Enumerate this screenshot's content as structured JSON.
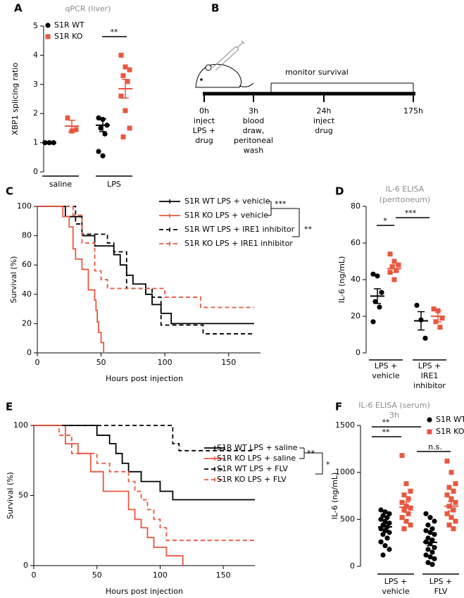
{
  "chart_data": [
    {
      "type": "strip",
      "panel": "A",
      "title": "qPCR (liver)",
      "ylabel": "XBP1 splicing ratio",
      "ylim": [
        0,
        5
      ],
      "yticks": [
        0,
        1,
        2,
        3,
        4,
        5
      ],
      "groups": [
        [
          "saline"
        ],
        [
          "LPS"
        ]
      ],
      "annotations": [
        "**"
      ],
      "series": [
        {
          "name": "S1R WT",
          "color": "#000000",
          "marker": "circle",
          "values": [
            [
              1,
              1,
              1
            ],
            [
              1.85,
              1.8,
              1.6,
              1.5,
              1.3,
              0.7,
              0.55
            ]
          ],
          "mean": [
            1,
            1.6
          ],
          "sem": [
            0,
            0.22
          ]
        },
        {
          "name": "S1R KO",
          "color": "#e9573f",
          "marker": "square",
          "values": [
            [
              1.85,
              1.4,
              1.45
            ],
            [
              4.0,
              3.6,
              3.5,
              3.3,
              3.1,
              2.6,
              2.1,
              1.5,
              1.2
            ]
          ],
          "mean": [
            1.57,
            2.85
          ],
          "sem": [
            0.2,
            0.32
          ]
        }
      ]
    },
    {
      "type": "step",
      "panel": "C",
      "ylabel": "Survival (%)",
      "xlabel": "Hours post injection",
      "xlim": [
        0,
        175
      ],
      "xticks": [
        0,
        50,
        100,
        150
      ],
      "ylim": [
        0,
        100
      ],
      "yticks": [
        0,
        20,
        40,
        60,
        80,
        100
      ],
      "annotations": [
        "***",
        "**"
      ],
      "series": [
        {
          "name": "S1R WT LPS + vehicle",
          "color": "#000000",
          "dash": false,
          "x": [
            0,
            22,
            35,
            45,
            60,
            65,
            70,
            75,
            85,
            90,
            97,
            105,
            170
          ],
          "values": [
            100,
            93,
            80,
            73,
            67,
            60,
            53,
            47,
            40,
            33,
            27,
            20,
            20
          ]
        },
        {
          "name": "S1R KO LPS + vehicle",
          "color": "#e9573f",
          "dash": false,
          "x": [
            0,
            20,
            25,
            28,
            30,
            35,
            40,
            45,
            46,
            47,
            48,
            50,
            52
          ],
          "values": [
            100,
            93,
            86,
            71,
            64,
            57,
            43,
            36,
            29,
            21,
            14,
            7,
            0
          ]
        },
        {
          "name": "S1R WT LPS + IRE1 inhibitor",
          "color": "#000000",
          "dash": true,
          "x": [
            0,
            30,
            35,
            55,
            60,
            70,
            90,
            97,
            130,
            170
          ],
          "values": [
            100,
            88,
            81,
            75,
            69,
            44,
            38,
            19,
            13,
            13
          ]
        },
        {
          "name": "S1R KO LPS + IRE1 inhibitor",
          "color": "#e9573f",
          "dash": true,
          "x": [
            0,
            28,
            35,
            45,
            50,
            55,
            100,
            128,
            170
          ],
          "values": [
            100,
            94,
            75,
            56,
            50,
            44,
            38,
            31,
            31
          ]
        }
      ]
    },
    {
      "type": "strip",
      "panel": "D",
      "title": "IL-6 ELISA",
      "subtitle": "(peritoneum)",
      "ylabel": "IL-6 (ng/mL)",
      "ylim": [
        0,
        80
      ],
      "yticks": [
        0,
        20,
        40,
        60,
        80
      ],
      "groups": [
        [
          "LPS +",
          "vehicle"
        ],
        [
          "LPS +",
          "IRE1",
          "inhibitor"
        ]
      ],
      "annotations": [
        "*",
        "***"
      ],
      "series": [
        {
          "color": "#000000",
          "marker": "circle",
          "values": [
            [
              43,
              42,
              33,
              28,
              25,
              17
            ],
            [
              26,
              18,
              8
            ]
          ],
          "mean": [
            31,
            17.5
          ],
          "sem": [
            4,
            5
          ]
        },
        {
          "color": "#e9573f",
          "marker": "square",
          "values": [
            [
              54,
              50,
              48,
              47,
              45,
              44,
              40
            ],
            [
              24,
              23,
              19,
              17,
              14
            ]
          ],
          "mean": [
            46,
            20
          ],
          "sem": [
            2,
            3
          ]
        }
      ]
    },
    {
      "type": "step",
      "panel": "E",
      "ylabel": "Survival (%)",
      "xlabel": "Hours post injection",
      "xlim": [
        0,
        175
      ],
      "xticks": [
        0,
        50,
        100,
        150
      ],
      "ylim": [
        0,
        100
      ],
      "yticks": [
        0,
        50,
        100
      ],
      "annotations": [
        "**",
        "*"
      ],
      "series": [
        {
          "name": "S1R WT LPS + saline",
          "color": "#000000",
          "dash": false,
          "x": [
            0,
            50,
            60,
            65,
            70,
            75,
            85,
            100,
            110,
            175
          ],
          "values": [
            100,
            93,
            87,
            80,
            73,
            67,
            60,
            53,
            47,
            47
          ]
        },
        {
          "name": "S1R KO LPS + saline",
          "color": "#e9573f",
          "dash": false,
          "x": [
            0,
            25,
            35,
            45,
            55,
            75,
            80,
            85,
            90,
            95,
            105,
            118
          ],
          "values": [
            100,
            87,
            80,
            67,
            53,
            40,
            33,
            27,
            20,
            13,
            7,
            0
          ]
        },
        {
          "name": "S1R WT LPS + FLV",
          "color": "#000000",
          "dash": true,
          "x": [
            0,
            60,
            110,
            115,
            175
          ],
          "values": [
            100,
            100,
            87,
            82,
            82
          ]
        },
        {
          "name": "S1R KO LPS + FLV",
          "color": "#e9573f",
          "dash": true,
          "x": [
            0,
            20,
            30,
            50,
            60,
            75,
            80,
            85,
            90,
            95,
            100,
            105,
            175
          ],
          "values": [
            100,
            93,
            80,
            73,
            67,
            60,
            53,
            47,
            40,
            33,
            27,
            18,
            18
          ]
        }
      ]
    },
    {
      "type": "strip",
      "panel": "F",
      "title": "IL-6  ELISA (serum)",
      "subtitle": "3h",
      "ylabel": "IL-6 (ng/mL)",
      "ylim": [
        0,
        1500
      ],
      "yticks": [
        0,
        500,
        1000,
        1500
      ],
      "groups": [
        [
          "LPS +",
          "vehicle"
        ],
        [
          "LPS +",
          "FLV"
        ]
      ],
      "annotations": [
        "**",
        "**",
        "n.s."
      ],
      "series": [
        {
          "name": "S1R WT",
          "color": "#000000",
          "marker": "circle",
          "values": [
            [
              600,
              580,
              560,
              540,
              520,
              500,
              480,
              460,
              440,
              420,
              400,
              380,
              360,
              340,
              300,
              260,
              220,
              180,
              120
            ],
            [
              560,
              520,
              480,
              440,
              400,
              380,
              360,
              340,
              300,
              280,
              260,
              240,
              200,
              180,
              150,
              120,
              100,
              80,
              40,
              20
            ]
          ],
          "mean": [
            420,
            255
          ],
          "sem": [
            35,
            35
          ]
        },
        {
          "name": "S1R KO",
          "color": "#e9573f",
          "marker": "square",
          "values": [
            [
              1180,
              880,
              800,
              760,
              720,
              680,
              640,
              620,
              600,
              560,
              520,
              480,
              440,
              400
            ],
            [
              1120,
              1000,
              880,
              840,
              800,
              760,
              720,
              680,
              640,
              600,
              560,
              520,
              480,
              440,
              400
            ]
          ],
          "mean": [
            630,
            640
          ],
          "sem": [
            55,
            50
          ]
        }
      ]
    }
  ],
  "timeline": {
    "panel": "B",
    "label": "monitor survival",
    "steps": [
      {
        "time": "0h",
        "lines": [
          "inject",
          "LPS +",
          "drug"
        ]
      },
      {
        "time": "3h",
        "lines": [
          "blood",
          "draw,",
          "peritoneal",
          "wash"
        ]
      },
      {
        "time": "24h",
        "lines": [
          "inject",
          "drug"
        ]
      },
      {
        "time": "175h",
        "lines": []
      }
    ]
  }
}
